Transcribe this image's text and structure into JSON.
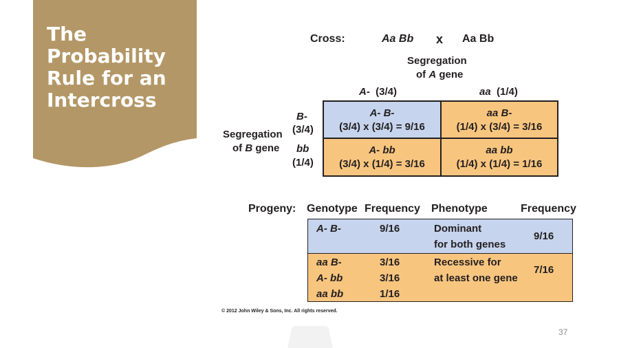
{
  "slide": {
    "title": "The\nProbability\nRule for an\nIntercross",
    "page_number": "37",
    "copyright": "© 2012 John Wiley & Sons, Inc. All rights reserved.",
    "colors": {
      "title_panel": "#b39766",
      "blue_cell": "#c6d4ed",
      "orange_cell": "#f8c57f",
      "grid_border": "#231f20"
    }
  },
  "cross": {
    "label": "Cross:",
    "parent1": "Aa Bb",
    "times": "x",
    "parent2": "Aa Bb"
  },
  "punnett": {
    "a_header": [
      "Segregation",
      "of ",
      "A",
      " gene"
    ],
    "b_header": [
      "Segregation",
      "of ",
      "B",
      " gene"
    ],
    "columns": [
      {
        "allele": "A-",
        "prob": "(3/4)"
      },
      {
        "allele": "aa",
        "prob": "(1/4)"
      }
    ],
    "rows": [
      {
        "allele": "B-",
        "prob": "(3/4)"
      },
      {
        "allele": "bb",
        "prob": "(1/4)"
      }
    ],
    "cells": [
      {
        "genotype": "A-  B-",
        "calc": "(3/4) x (3/4) = 9/16"
      },
      {
        "genotype": "aa  B-",
        "calc": "(1/4) x (3/4) = 3/16"
      },
      {
        "genotype": "A-  bb",
        "calc": "(3/4) x (1/4) = 3/16"
      },
      {
        "genotype": "aa bb",
        "calc": "(1/4) x (1/4) = 1/16"
      }
    ]
  },
  "progeny": {
    "label": "Progeny:",
    "headers": [
      "Genotype",
      "Frequency",
      "Phenotype",
      "Frequency"
    ],
    "groups": [
      {
        "genotypes": [
          "A-  B-"
        ],
        "frequencies": [
          "9/16"
        ],
        "phenotype": [
          "Dominant",
          "for both genes"
        ],
        "total": "9/16"
      },
      {
        "genotypes": [
          "aa  B-",
          "A-  bb",
          "aa  bb"
        ],
        "frequencies": [
          "3/16",
          "3/16",
          "1/16"
        ],
        "phenotype": [
          "Recessive for",
          "at least one gene"
        ],
        "total": "7/16"
      }
    ]
  }
}
